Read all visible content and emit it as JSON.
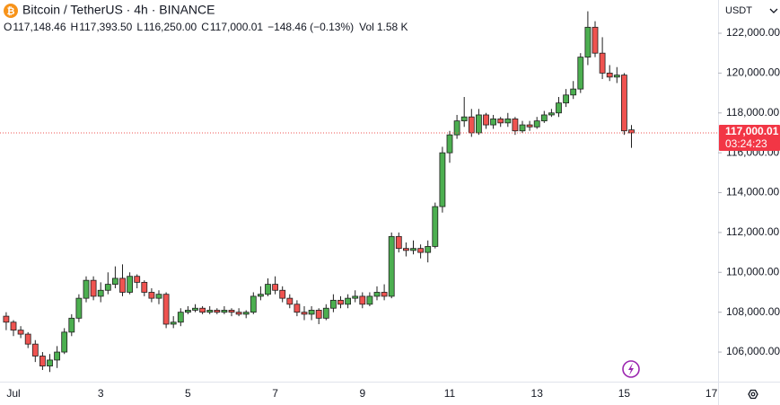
{
  "chart_data": {
    "type": "candlestick",
    "title": "Bitcoin / TetherUS · 4h · BINANCE",
    "legend": [
      {
        "key": "O",
        "value": "117,148.46"
      },
      {
        "key": "H",
        "value": "117,393.50"
      },
      {
        "key": "L",
        "value": "116,250.00"
      },
      {
        "key": "C",
        "value": "117,000.01"
      }
    ],
    "change": "−148.46 (−0.13%)",
    "volume": {
      "key": "Vol",
      "value": "1.58 K"
    },
    "currency": "USDT",
    "price_label": "117,000.01",
    "countdown": "03:24:23",
    "up_color": "#4caf50",
    "down_color": "#ef5350",
    "ylim": [
      104515,
      123667
    ],
    "yticks": [
      {
        "value": 106000,
        "label": "106,000.00"
      },
      {
        "value": 108000,
        "label": "108,000.00"
      },
      {
        "value": 110000,
        "label": "110,000.00"
      },
      {
        "value": 112000,
        "label": "112,000.00"
      },
      {
        "value": 114000,
        "label": "114,000.00"
      },
      {
        "value": 116000,
        "label": "116,000.00"
      },
      {
        "value": 118000,
        "label": "118,000.00"
      },
      {
        "value": 120000,
        "label": "120,000.00"
      },
      {
        "value": 122000,
        "label": "122,000.00"
      }
    ],
    "categories": [
      null,
      "Jul",
      null,
      null,
      null,
      null,
      null,
      null,
      null,
      null,
      null,
      null,
      null,
      "3",
      null,
      null,
      null,
      null,
      null,
      null,
      null,
      null,
      null,
      null,
      null,
      "5",
      null,
      null,
      null,
      null,
      null,
      null,
      null,
      null,
      null,
      null,
      null,
      "7",
      null,
      null,
      null,
      null,
      null,
      null,
      null,
      null,
      null,
      null,
      null,
      "9",
      null,
      null,
      null,
      null,
      null,
      null,
      null,
      null,
      null,
      null,
      null,
      "11",
      null,
      null,
      null,
      null,
      null,
      null,
      null,
      null,
      null,
      null,
      null,
      "13",
      null,
      null,
      null,
      null,
      null,
      null,
      null,
      null,
      null,
      null,
      null,
      "15",
      null,
      null,
      null,
      null,
      null,
      null,
      null,
      null,
      null,
      null,
      null,
      "17"
    ],
    "open": [
      107800,
      107500,
      107100,
      106900,
      106400,
      105800,
      105300,
      105600,
      106000,
      107000,
      107700,
      108700,
      109600,
      108800,
      109100,
      109400,
      109700,
      109000,
      109800,
      109500,
      109000,
      108700,
      108900,
      107400,
      107500,
      108000,
      108100,
      108200,
      108000,
      108100,
      108000,
      108100,
      108000,
      107900,
      108000,
      108800,
      108900,
      109400,
      109100,
      108700,
      108400,
      108000,
      107900,
      108100,
      107700,
      108200,
      108600,
      108400,
      108700,
      108800,
      108400,
      108800,
      109000,
      108800,
      111800,
      111200,
      111100,
      111200,
      111000,
      111300,
      113300,
      116000,
      116900,
      117600,
      117800,
      117000,
      117900,
      117400,
      117700,
      117500,
      117700,
      117100,
      117400,
      117300,
      117600,
      117900,
      118000,
      118500,
      118900,
      119200,
      120800,
      122300,
      121000,
      120000,
      119800,
      119900,
      117148.46,
      null,
      null,
      null,
      null,
      null,
      null,
      null,
      null,
      null,
      null,
      null
    ],
    "high": [
      108000,
      107600,
      107300,
      107000,
      106600,
      106000,
      105900,
      106300,
      107200,
      107900,
      108900,
      109800,
      109800,
      109500,
      110000,
      110300,
      110400,
      110000,
      109900,
      109600,
      109200,
      109100,
      109000,
      107800,
      108200,
      108300,
      108400,
      108300,
      108300,
      108200,
      108300,
      108200,
      108200,
      108100,
      109000,
      109300,
      109700,
      109800,
      109300,
      108900,
      108600,
      108300,
      108300,
      108200,
      108400,
      108900,
      108800,
      108900,
      109100,
      109000,
      109000,
      109300,
      109400,
      112000,
      112000,
      111500,
      111600,
      111400,
      111600,
      113500,
      116300,
      117100,
      117900,
      118800,
      118200,
      118200,
      118000,
      117900,
      117800,
      118000,
      117800,
      117600,
      117600,
      117800,
      118100,
      118200,
      118800,
      119200,
      119600,
      121000,
      123100,
      122600,
      121800,
      120400,
      120300,
      120000,
      117393.5,
      null,
      null,
      null,
      null,
      null,
      null,
      null,
      null,
      null,
      null,
      null
    ],
    "low": [
      107100,
      106800,
      106700,
      106200,
      105500,
      105100,
      105000,
      105200,
      105900,
      106800,
      107500,
      108500,
      108600,
      108500,
      108900,
      109200,
      108800,
      108900,
      109200,
      108800,
      108500,
      108400,
      107200,
      107200,
      107300,
      107900,
      108000,
      107900,
      107900,
      107900,
      107900,
      107800,
      107800,
      107700,
      107900,
      108600,
      108800,
      108900,
      108500,
      108200,
      107800,
      107600,
      107600,
      107400,
      107600,
      108000,
      108200,
      108200,
      108500,
      108200,
      108300,
      108600,
      108600,
      108700,
      111000,
      110800,
      110900,
      110700,
      110500,
      111200,
      113000,
      115500,
      116700,
      117300,
      116800,
      116900,
      117200,
      117200,
      117300,
      117300,
      116900,
      117000,
      117100,
      117200,
      117500,
      117800,
      117800,
      118300,
      118700,
      119000,
      120400,
      120800,
      119700,
      119600,
      119500,
      116900,
      116250,
      null,
      null,
      null,
      null,
      null,
      null,
      null,
      null,
      null,
      null,
      null
    ],
    "close": [
      107500,
      107100,
      106900,
      106400,
      105800,
      105300,
      105600,
      106000,
      107000,
      107700,
      108700,
      109600,
      108800,
      109100,
      109400,
      109700,
      109000,
      109800,
      109500,
      109000,
      108700,
      108900,
      107400,
      107500,
      108000,
      108100,
      108200,
      108000,
      108100,
      108000,
      108100,
      108000,
      107900,
      108000,
      108800,
      108900,
      109400,
      109100,
      108700,
      108400,
      108000,
      107900,
      108100,
      107700,
      108200,
      108600,
      108400,
      108700,
      108800,
      108400,
      108800,
      109000,
      108800,
      111800,
      111200,
      111100,
      111200,
      111000,
      111300,
      113300,
      116000,
      116900,
      117600,
      117800,
      117000,
      117900,
      117400,
      117700,
      117500,
      117700,
      117100,
      117400,
      117300,
      117600,
      117900,
      118000,
      118500,
      118900,
      119200,
      120800,
      122300,
      121000,
      120000,
      119800,
      119900,
      117100,
      117000.01,
      null,
      null,
      null,
      null,
      null,
      null,
      null,
      null,
      null,
      null,
      null
    ]
  }
}
